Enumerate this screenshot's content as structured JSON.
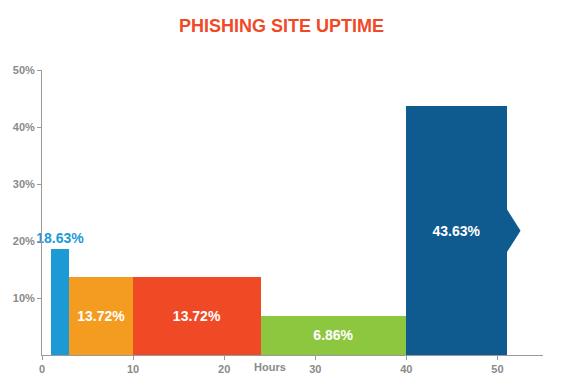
{
  "chart_data": {
    "type": "histogram",
    "title": "PHISHING SITE UPTIME",
    "x_label": "Hours",
    "bins": [
      1,
      3,
      10,
      24,
      40,
      51
    ],
    "values": [
      18.63,
      13.72,
      13.72,
      6.86,
      43.63
    ],
    "value_labels": [
      "18.63%",
      "13.72%",
      "13.72%",
      "6.86%",
      "43.63%"
    ],
    "colors": [
      "#1b9ad6",
      "#f39c1f",
      "#ef4a25",
      "#8dc63f",
      "#0f5a8f"
    ],
    "xlim": [
      0,
      55
    ],
    "xticks": [
      0,
      10,
      20,
      30,
      40,
      50
    ],
    "ylim": [
      0,
      50
    ],
    "yticks": [
      {
        "value": 10,
        "label": "10%"
      },
      {
        "value": 20,
        "label": "20%"
      },
      {
        "value": 30,
        "label": "30%"
      },
      {
        "value": 40,
        "label": "40%"
      },
      {
        "value": 50,
        "label": "50%"
      }
    ],
    "grid": false,
    "data_labels": true
  }
}
